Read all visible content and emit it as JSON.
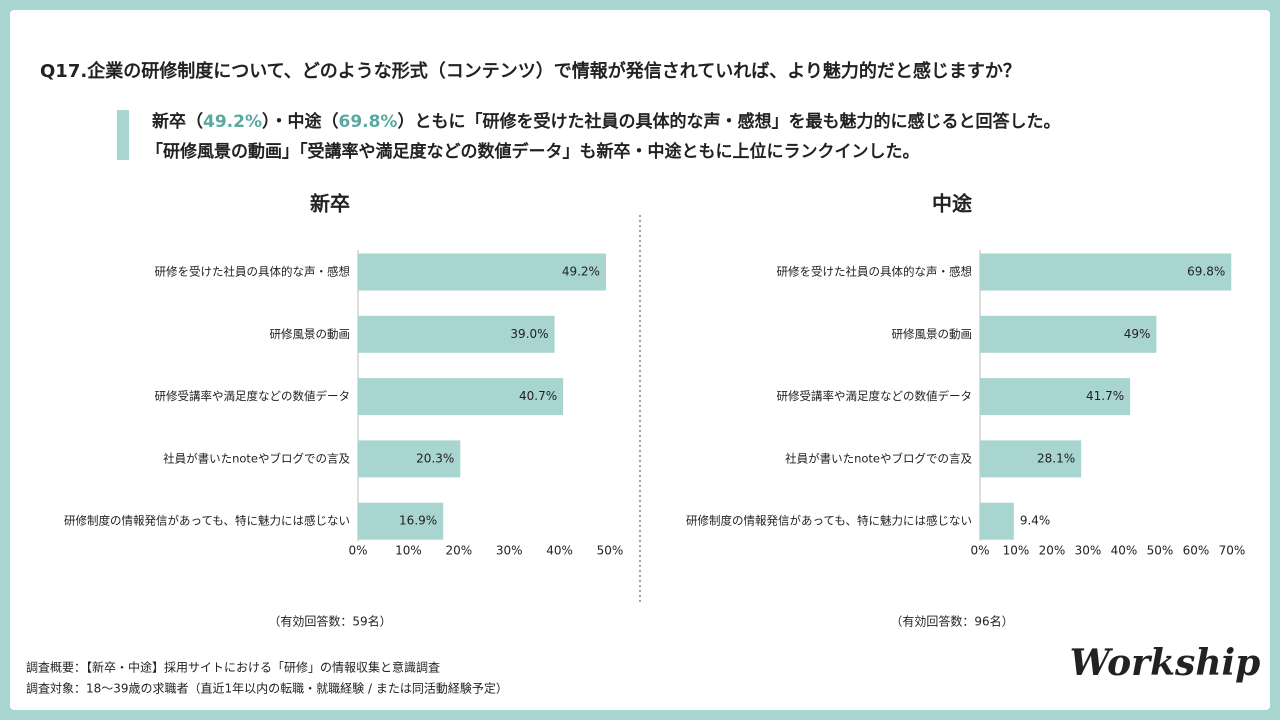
{
  "header": {
    "title": "Q17.企業の研修制度について、どのような形式（コンテンツ）で情報が発信されていれば、より魅力的だと感じますか？",
    "summary": [
      [
        "新卒（",
        "49.2%",
        "）・中途（",
        "69.8%",
        "）ともに「研修を受けた社員の具体的な声・感想」を最も魅力的に感じると回答した。"
      ],
      [
        "「研修風景の動画」「受講率や満足度などの数値データ」も新卒・中途ともに上位にランクインした。"
      ]
    ]
  },
  "chart_data": [
    {
      "type": "bar",
      "orientation": "horizontal",
      "title": "新卒",
      "categories": [
        "研修を受けた社員の具体的な声・感想",
        "研修風景の動画",
        "研修受講率や満足度などの数値データ",
        "社員が書いたnoteやブログでの言及",
        "研修制度の情報発信があっても、特に魅力には感じない"
      ],
      "values": [
        49.2,
        39.0,
        40.7,
        20.3,
        16.9
      ],
      "value_labels": [
        "49.2%",
        "39.0%",
        "40.7%",
        "20.3%",
        "16.9%"
      ],
      "color": "#a8d5cf",
      "xlim": [
        0,
        50
      ],
      "xticks": [
        {
          "value": 0,
          "label": "0%"
        },
        {
          "value": 10,
          "label": "10%"
        },
        {
          "value": 20,
          "label": "20%"
        },
        {
          "value": 30,
          "label": "30%"
        },
        {
          "value": 40,
          "label": "40%"
        },
        {
          "value": 50,
          "label": "50%"
        }
      ],
      "note": "（有効回答数：59名）"
    },
    {
      "type": "bar",
      "orientation": "horizontal",
      "title": "中途",
      "categories": [
        "研修を受けた社員の具体的な声・感想",
        "研修風景の動画",
        "研修受講率や満足度などの数値データ",
        "社員が書いたnoteやブログでの言及",
        "研修制度の情報発信があっても、特に魅力には感じない"
      ],
      "values": [
        69.8,
        49,
        41.7,
        28.1,
        9.4
      ],
      "value_labels": [
        "69.8%",
        "49%",
        "41.7%",
        "28.1%",
        "9.4%"
      ],
      "color": "#a8d5cf",
      "xlim": [
        0,
        70
      ],
      "xticks": [
        {
          "value": 0,
          "label": "0%"
        },
        {
          "value": 10,
          "label": "10%"
        },
        {
          "value": 20,
          "label": "20%"
        },
        {
          "value": 30,
          "label": "30%"
        },
        {
          "value": 40,
          "label": "40%"
        },
        {
          "value": 50,
          "label": "50%"
        },
        {
          "value": 60,
          "label": "60%"
        },
        {
          "value": 70,
          "label": "70%"
        }
      ],
      "note": "（有効回答数：96名）"
    }
  ],
  "footer": {
    "lines": [
      "調査概要：【新卒・中途】採用サイトにおける「研修」の情報収集と意識調査",
      "調査対象：18〜39歳の求職者（直近1年以内の転職・就職経験 / または同活動経験予定）"
    ],
    "logo": "Workship"
  }
}
